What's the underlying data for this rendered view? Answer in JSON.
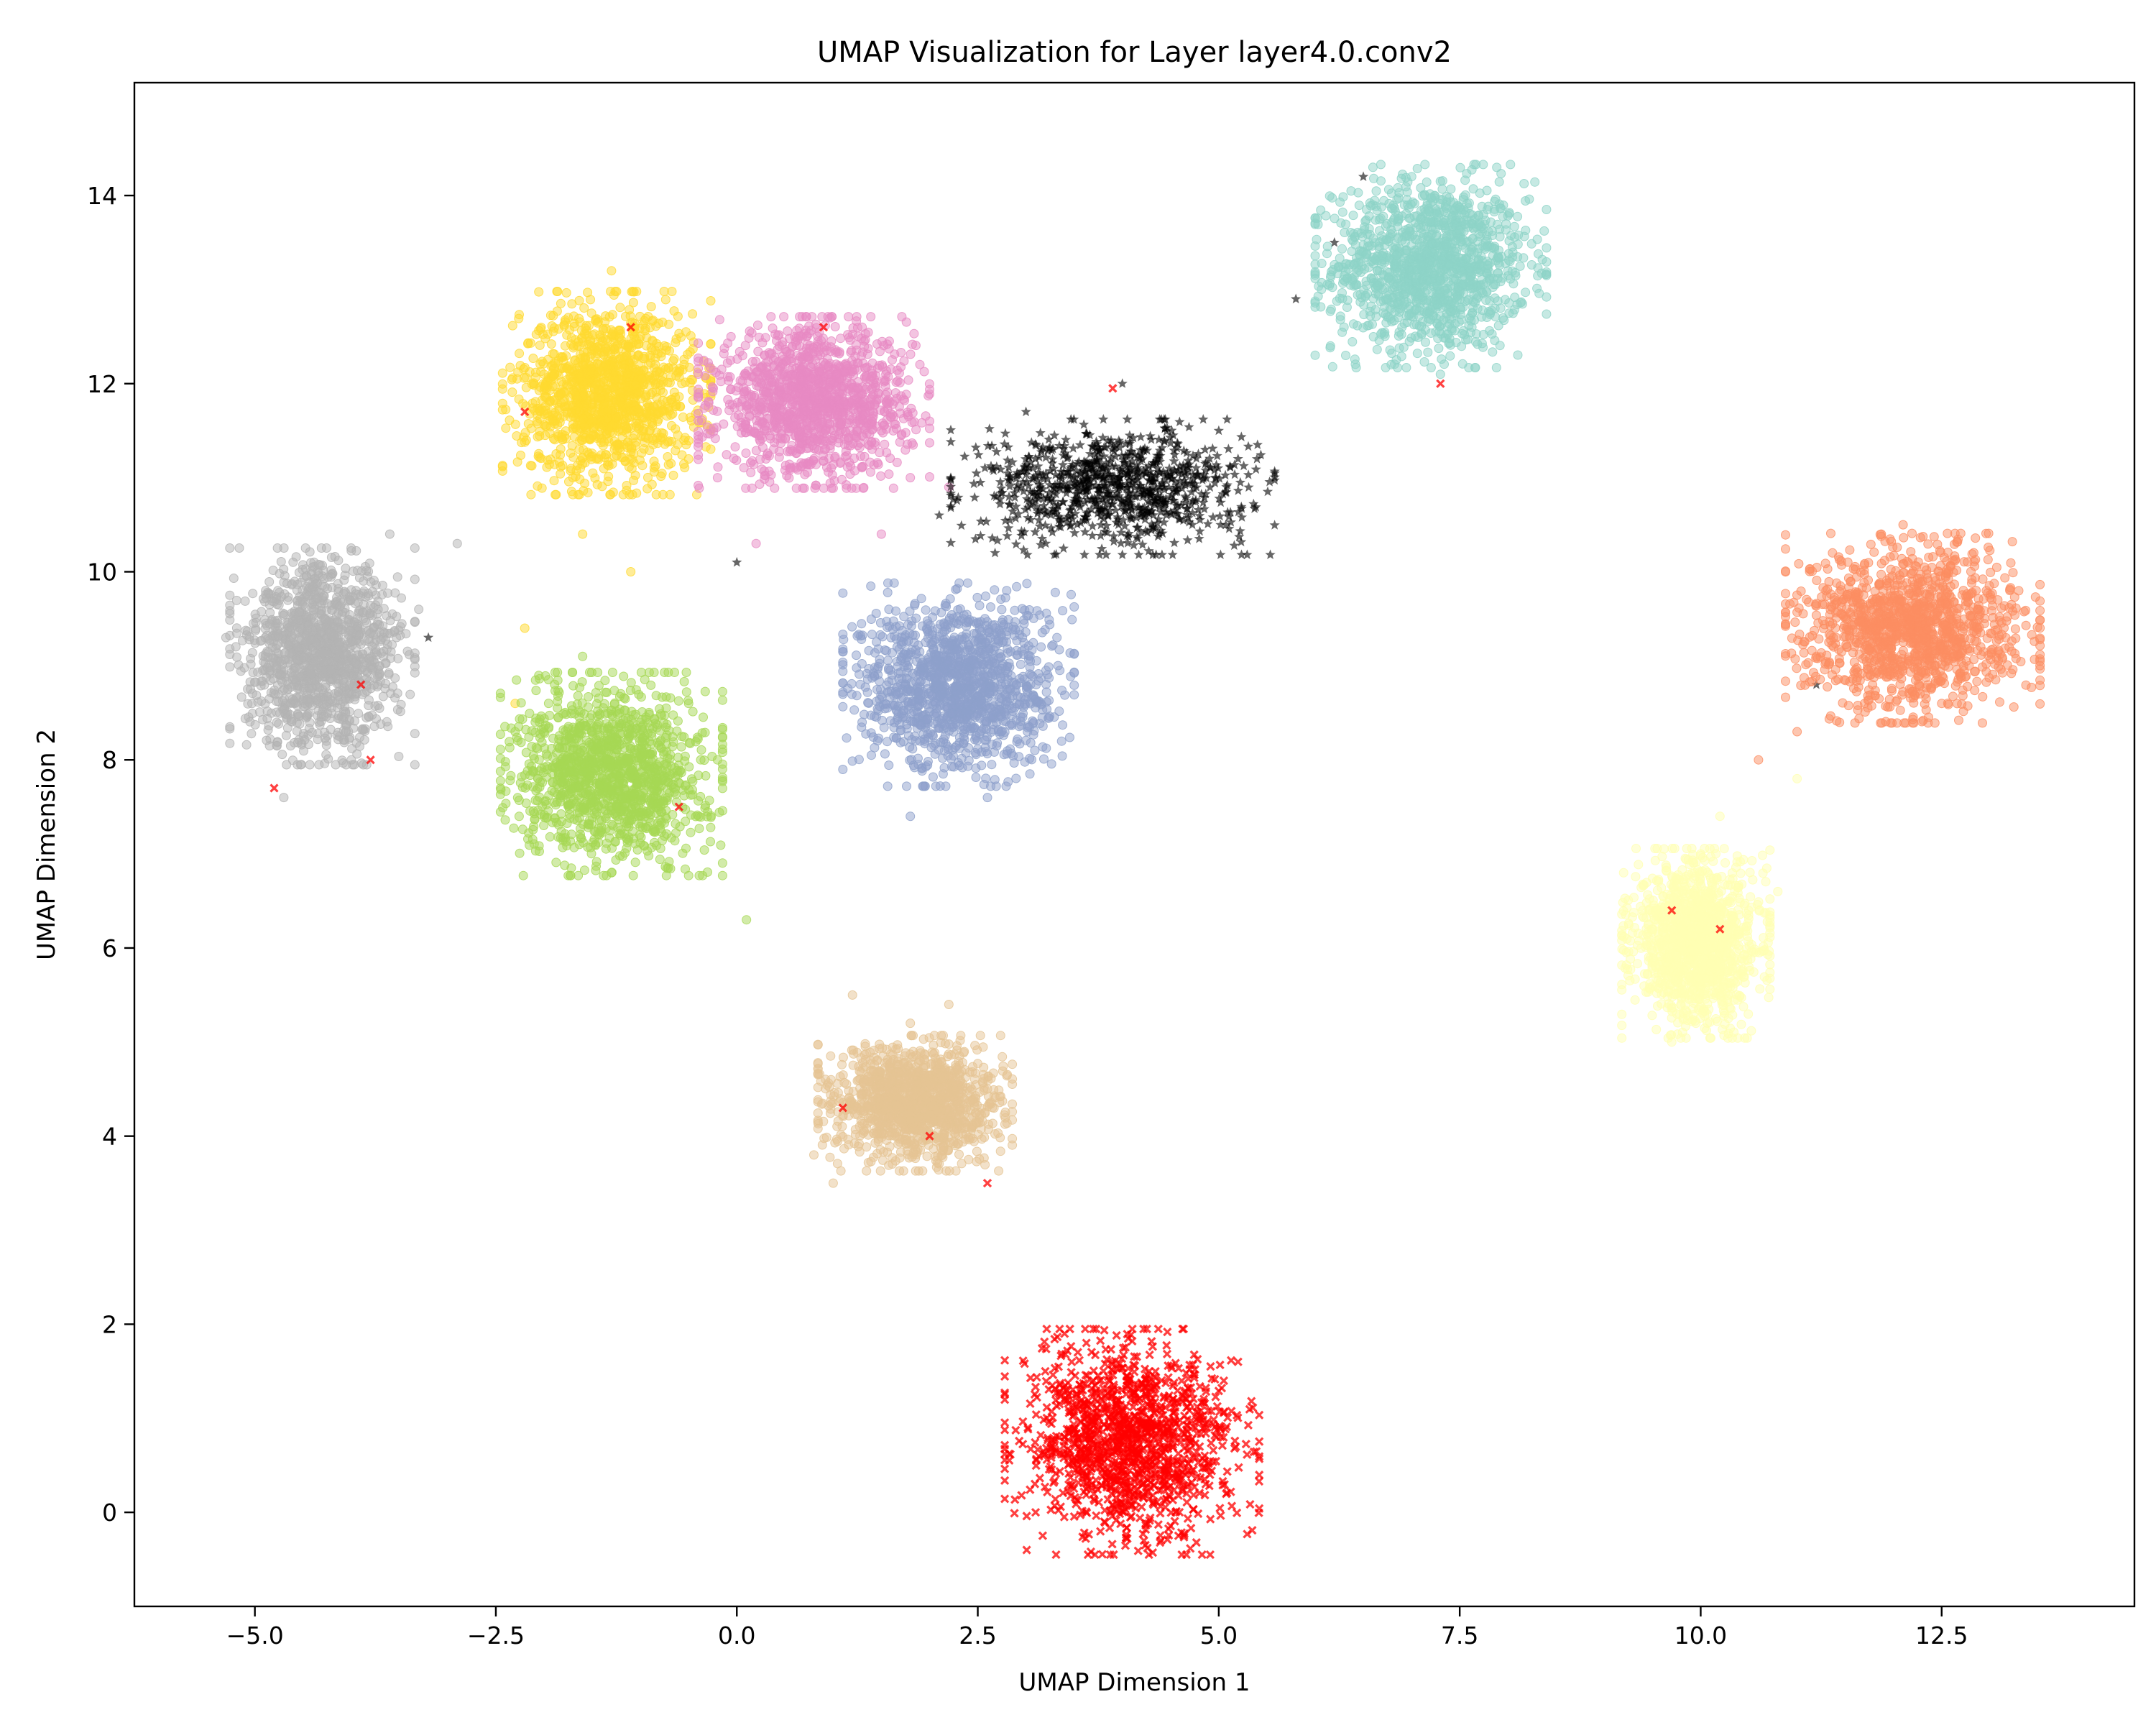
{
  "chart_data": {
    "type": "scatter",
    "title": "UMAP Visualization for Layer layer4.0.conv2",
    "xlabel": "UMAP Dimension 1",
    "ylabel": "UMAP Dimension 2",
    "xlim": [
      -6.25,
      14.5
    ],
    "ylim": [
      -1.0,
      15.2
    ],
    "xticks": [
      -5.0,
      -2.5,
      0.0,
      2.5,
      5.0,
      7.5,
      10.0,
      12.5
    ],
    "xtick_labels": [
      "−5.0",
      "−2.5",
      "0.0",
      "2.5",
      "5.0",
      "7.5",
      "10.0",
      "12.5"
    ],
    "yticks": [
      0,
      2,
      4,
      6,
      8,
      10,
      12,
      14
    ],
    "ytick_labels": [
      "0",
      "2",
      "4",
      "6",
      "8",
      "10",
      "12",
      "14"
    ],
    "grid": false,
    "legend": "none",
    "series": [
      {
        "color": "#8dd3c7",
        "marker": "circle",
        "center": [
          7.2,
          13.25
        ],
        "spread": [
          0.5,
          0.45
        ],
        "points": [
          [
            6.6,
            14.3
          ],
          [
            6.8,
            13.6
          ],
          [
            6.3,
            12.6
          ],
          [
            7.0,
            12.9
          ],
          [
            7.6,
            13.4
          ],
          [
            8.0,
            13.2
          ],
          [
            8.4,
            13.15
          ],
          [
            7.3,
            12.1
          ],
          [
            6.9,
            12.6
          ]
        ]
      },
      {
        "color": "#ffd92f",
        "marker": "circle",
        "center": [
          -1.35,
          11.9
        ],
        "spread": [
          0.45,
          0.45
        ],
        "points": [
          [
            -1.3,
            13.2
          ],
          [
            -1.6,
            10.4
          ],
          [
            -2.2,
            9.4
          ],
          [
            -2.3,
            8.6
          ],
          [
            -1.1,
            10.0
          ],
          [
            -0.9,
            12.3
          ],
          [
            -0.5,
            11.2
          ],
          [
            -1.7,
            11.0
          ],
          [
            -2.0,
            12.1
          ]
        ]
      },
      {
        "color": "#e78ac3",
        "marker": "circle",
        "center": [
          0.8,
          11.8
        ],
        "spread": [
          0.5,
          0.38
        ],
        "points": [
          [
            1.3,
            12.6
          ],
          [
            0.2,
            10.3
          ],
          [
            -0.2,
            11.0
          ],
          [
            1.8,
            11.0
          ],
          [
            2.2,
            10.9
          ],
          [
            1.5,
            10.4
          ],
          [
            0.6,
            12.5
          ]
        ]
      },
      {
        "color": "#000000",
        "marker": "star",
        "center": [
          3.9,
          10.9
        ],
        "spread": [
          0.7,
          0.3
        ],
        "points": [
          [
            3.0,
            11.7
          ],
          [
            4.0,
            12.0
          ],
          [
            5.0,
            11.5
          ],
          [
            5.2,
            11.2
          ],
          [
            2.1,
            10.6
          ],
          [
            6.5,
            14.2
          ],
          [
            6.2,
            13.5
          ],
          [
            5.8,
            12.9
          ],
          [
            11.2,
            8.8
          ],
          [
            0.0,
            10.1
          ],
          [
            -3.2,
            9.3
          ]
        ]
      },
      {
        "color": "#8da0cb",
        "marker": "circle",
        "center": [
          2.3,
          8.8
        ],
        "spread": [
          0.5,
          0.45
        ],
        "points": [
          [
            2.9,
            8.8
          ],
          [
            1.8,
            7.4
          ],
          [
            2.6,
            7.6
          ],
          [
            1.3,
            8.4
          ],
          [
            2.8,
            9.8
          ],
          [
            1.6,
            9.3
          ]
        ]
      },
      {
        "color": "#a6d854",
        "marker": "circle",
        "center": [
          -1.3,
          7.85
        ],
        "spread": [
          0.48,
          0.45
        ],
        "points": [
          [
            -1.6,
            9.1
          ],
          [
            -2.3,
            8.3
          ],
          [
            -0.2,
            8.0
          ],
          [
            -1.3,
            6.8
          ],
          [
            0.1,
            6.3
          ],
          [
            -0.5,
            8.6
          ]
        ]
      },
      {
        "color": "#b3b3b3",
        "marker": "circle",
        "center": [
          -4.3,
          9.1
        ],
        "spread": [
          0.4,
          0.48
        ],
        "points": [
          [
            -5.3,
            9.3
          ],
          [
            -4.7,
            7.6
          ],
          [
            -3.6,
            10.4
          ],
          [
            -2.9,
            10.3
          ],
          [
            -3.3,
            9.6
          ],
          [
            -4.0,
            8.0
          ]
        ]
      },
      {
        "color": "#fc8d62",
        "marker": "circle",
        "center": [
          12.2,
          9.4
        ],
        "spread": [
          0.55,
          0.42
        ],
        "points": [
          [
            11.3,
            9.8
          ],
          [
            12.1,
            10.5
          ],
          [
            13.2,
            9.2
          ],
          [
            12.5,
            8.6
          ],
          [
            11.7,
            8.6
          ],
          [
            11.0,
            8.3
          ],
          [
            10.6,
            8.0
          ],
          [
            11.2,
            9.1
          ]
        ]
      },
      {
        "color": "#ffffb3",
        "marker": "circle",
        "center": [
          9.95,
          6.05
        ],
        "spread": [
          0.32,
          0.42
        ],
        "points": [
          [
            9.2,
            6.8
          ],
          [
            10.2,
            7.4
          ],
          [
            10.8,
            6.6
          ],
          [
            9.7,
            5.0
          ],
          [
            10.5,
            5.8
          ],
          [
            11.0,
            7.8
          ],
          [
            10.0,
            7.0
          ]
        ]
      },
      {
        "color": "#e5c494",
        "marker": "circle",
        "center": [
          1.85,
          4.35
        ],
        "spread": [
          0.42,
          0.3
        ],
        "points": [
          [
            1.0,
            3.5
          ],
          [
            2.6,
            4.5
          ],
          [
            1.8,
            5.2
          ],
          [
            0.8,
            3.8
          ],
          [
            2.2,
            5.4
          ],
          [
            1.2,
            5.5
          ]
        ]
      },
      {
        "color": "#ff0000",
        "marker": "x",
        "center": [
          4.1,
          0.75
        ],
        "spread": [
          0.55,
          0.5
        ],
        "points": [
          [
            3.4,
            1.9
          ],
          [
            3.1,
            0.0
          ],
          [
            5.2,
            1.6
          ],
          [
            4.4,
            -0.3
          ],
          [
            3.2,
            1.5
          ],
          [
            2.6,
            3.5
          ],
          [
            -1.1,
            12.6
          ],
          [
            0.9,
            12.6
          ],
          [
            3.9,
            11.95
          ],
          [
            -2.2,
            11.7
          ],
          [
            -3.9,
            8.8
          ],
          [
            -3.8,
            8.0
          ],
          [
            -0.6,
            7.5
          ],
          [
            -4.8,
            7.7
          ],
          [
            9.7,
            6.4
          ],
          [
            10.2,
            6.2
          ],
          [
            1.1,
            4.3
          ],
          [
            2.0,
            4.0
          ],
          [
            7.3,
            12.0
          ]
        ]
      }
    ]
  }
}
